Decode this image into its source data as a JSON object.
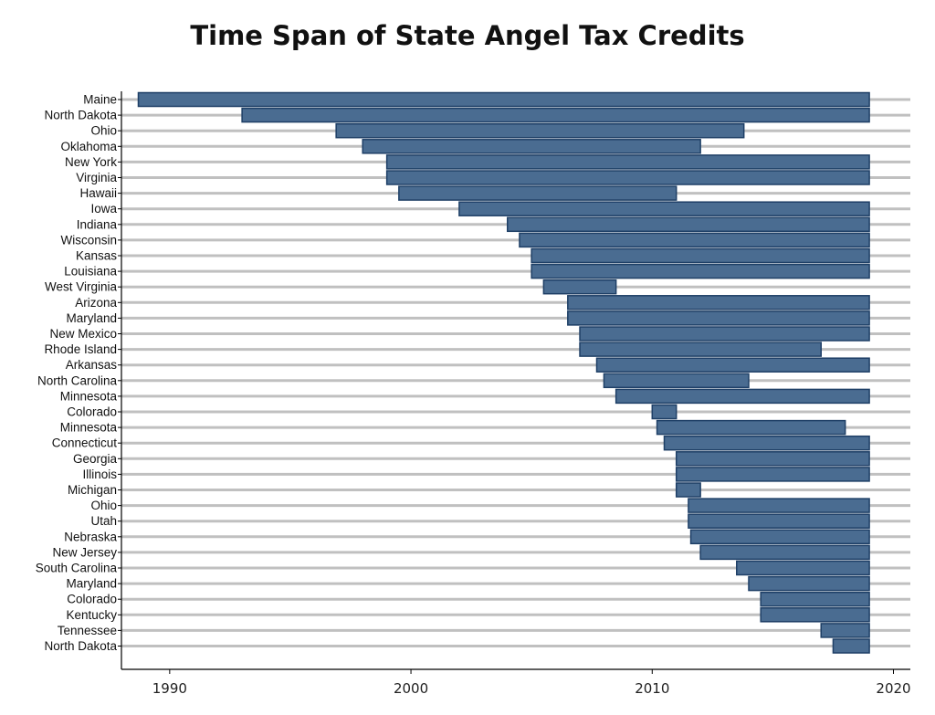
{
  "title": "Time Span of State Angel Tax Credits",
  "chart_data": {
    "type": "bar",
    "orientation": "horizontal-range",
    "title": "Time Span of State Angel Tax Credits",
    "xlabel": "",
    "ylabel": "",
    "xlim": [
      1988,
      2020.7
    ],
    "xticks": [
      1990,
      2000,
      2010,
      2020
    ],
    "grid": "horizontal",
    "bar_color": "#4a6c91",
    "bar_edge_color": "#1e3f66",
    "grid_color": "#c0c0c0",
    "bars": [
      {
        "label": "Maine",
        "start": 1988.7,
        "end": 2019
      },
      {
        "label": "North Dakota",
        "start": 1993,
        "end": 2019
      },
      {
        "label": "Ohio",
        "start": 1996.9,
        "end": 2013.8
      },
      {
        "label": "Oklahoma",
        "start": 1998,
        "end": 2012
      },
      {
        "label": "New York",
        "start": 1999,
        "end": 2019
      },
      {
        "label": "Virginia",
        "start": 1999,
        "end": 2019
      },
      {
        "label": "Hawaii",
        "start": 1999.5,
        "end": 2011
      },
      {
        "label": "Iowa",
        "start": 2002,
        "end": 2019
      },
      {
        "label": "Indiana",
        "start": 2004,
        "end": 2019
      },
      {
        "label": "Wisconsin",
        "start": 2004.5,
        "end": 2019
      },
      {
        "label": "Kansas",
        "start": 2005,
        "end": 2019
      },
      {
        "label": "Louisiana",
        "start": 2005,
        "end": 2019
      },
      {
        "label": "West Virginia",
        "start": 2005.5,
        "end": 2008.5
      },
      {
        "label": "Arizona",
        "start": 2006.5,
        "end": 2019
      },
      {
        "label": "Maryland",
        "start": 2006.5,
        "end": 2019
      },
      {
        "label": "New Mexico",
        "start": 2007,
        "end": 2019
      },
      {
        "label": "Rhode Island",
        "start": 2007,
        "end": 2017
      },
      {
        "label": "Arkansas",
        "start": 2007.7,
        "end": 2019
      },
      {
        "label": "North Carolina",
        "start": 2008,
        "end": 2014
      },
      {
        "label": "Minnesota",
        "start": 2008.5,
        "end": 2019
      },
      {
        "label": "Colorado",
        "start": 2010,
        "end": 2011
      },
      {
        "label": "Minnesota",
        "start": 2010.2,
        "end": 2018
      },
      {
        "label": "Connecticut",
        "start": 2010.5,
        "end": 2019
      },
      {
        "label": "Georgia",
        "start": 2011,
        "end": 2019
      },
      {
        "label": "Illinois",
        "start": 2011,
        "end": 2019
      },
      {
        "label": "Michigan",
        "start": 2011,
        "end": 2012
      },
      {
        "label": "Ohio",
        "start": 2011.5,
        "end": 2019
      },
      {
        "label": "Utah",
        "start": 2011.5,
        "end": 2019
      },
      {
        "label": "Nebraska",
        "start": 2011.6,
        "end": 2019
      },
      {
        "label": "New Jersey",
        "start": 2012,
        "end": 2019
      },
      {
        "label": "South Carolina",
        "start": 2013.5,
        "end": 2019
      },
      {
        "label": "Maryland",
        "start": 2014,
        "end": 2019
      },
      {
        "label": "Colorado",
        "start": 2014.5,
        "end": 2019
      },
      {
        "label": "Kentucky",
        "start": 2014.5,
        "end": 2019
      },
      {
        "label": "Tennessee",
        "start": 2017,
        "end": 2019
      },
      {
        "label": "North Dakota",
        "start": 2017.5,
        "end": 2019
      }
    ]
  }
}
